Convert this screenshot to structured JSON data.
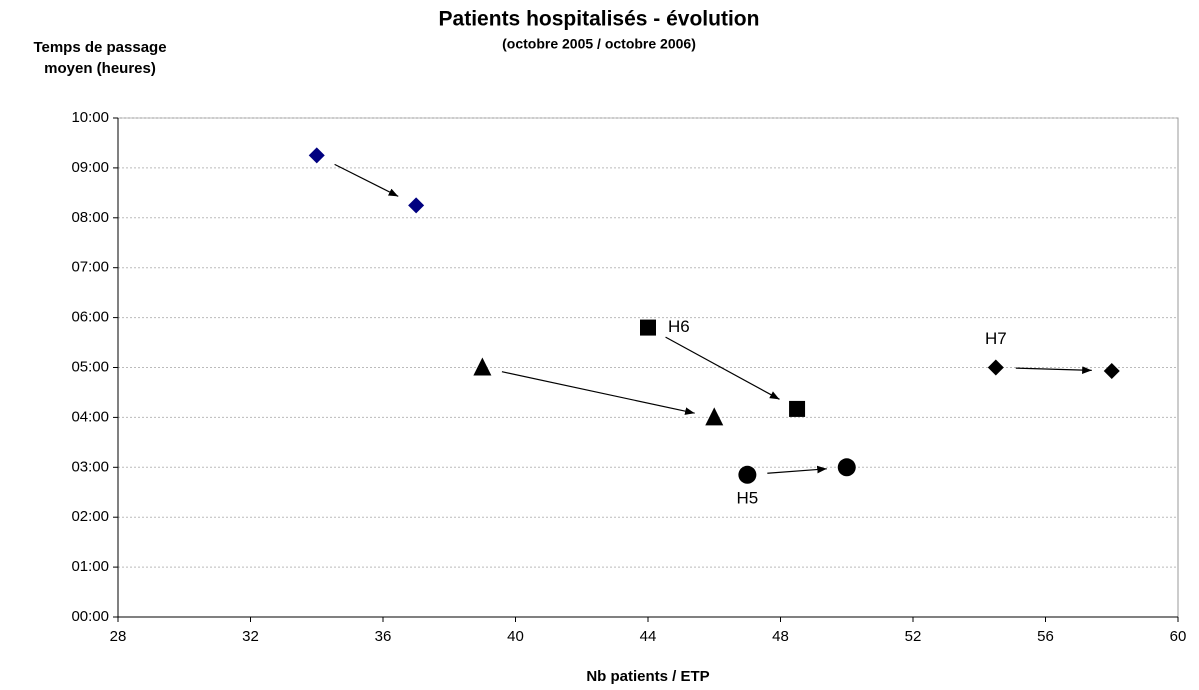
{
  "chart_data": {
    "type": "scatter",
    "title": "Patients hospitalisés - évolution",
    "subtitle": "(octobre 2005 / octobre 2006)",
    "ylabel": [
      "Temps de passage",
      "moyen (heures)"
    ],
    "xlabel": "Nb patients / ETP",
    "xlim": [
      28,
      60
    ],
    "xticks": [
      28,
      32,
      36,
      40,
      44,
      48,
      52,
      56,
      60
    ],
    "ylim": [
      0,
      10
    ],
    "yticks": [
      {
        "value": 0,
        "label": "00:00"
      },
      {
        "value": 1,
        "label": "01:00"
      },
      {
        "value": 2,
        "label": "02:00"
      },
      {
        "value": 3,
        "label": "03:00"
      },
      {
        "value": 4,
        "label": "04:00"
      },
      {
        "value": 5,
        "label": "05:00"
      },
      {
        "value": 6,
        "label": "06:00"
      },
      {
        "value": 7,
        "label": "07:00"
      },
      {
        "value": 8,
        "label": "08:00"
      },
      {
        "value": 9,
        "label": "09:00"
      },
      {
        "value": 10,
        "label": "10:00"
      }
    ],
    "grid": true,
    "series": [
      {
        "marker": "diamond",
        "color": "#000080",
        "x": [
          34,
          37
        ],
        "y": [
          9.25,
          8.25
        ]
      },
      {
        "label": "H6",
        "marker": "square",
        "color": "#000000",
        "x": [
          44,
          48.5
        ],
        "y": [
          5.8,
          4.17
        ]
      },
      {
        "marker": "triangle",
        "color": "#000000",
        "x": [
          39,
          46
        ],
        "y": [
          5.0,
          4.0
        ]
      },
      {
        "label": "H5",
        "marker": "circle",
        "color": "#000000",
        "x": [
          47,
          50
        ],
        "y": [
          2.85,
          3.0
        ]
      },
      {
        "label": "H7",
        "marker": "diamond",
        "color": "#000000",
        "x": [
          54.5,
          58
        ],
        "y": [
          5.0,
          4.93
        ]
      }
    ]
  }
}
